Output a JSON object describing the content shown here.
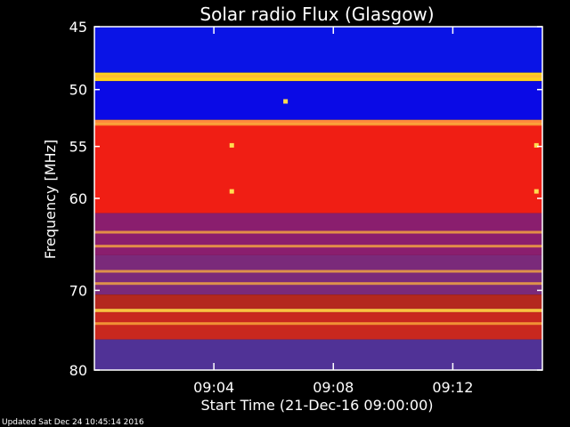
{
  "chart_data": {
    "type": "heatmap",
    "title": "Solar radio Flux (Glasgow)",
    "xlabel": "Start Time (21-Dec-16 09:00:00)",
    "ylabel": "Frequency [MHz]",
    "x_ticks": [
      "09:04",
      "09:08",
      "09:12"
    ],
    "x_tick_minutes": [
      4,
      8,
      12
    ],
    "xlim_minutes": [
      0,
      15
    ],
    "y_ticks": [
      45,
      50,
      55,
      60,
      70,
      80
    ],
    "ylim_mhz": [
      45,
      80
    ],
    "y_scale": "log",
    "colormap": "blue-red-yellow",
    "bands": [
      {
        "from": 45.0,
        "to": 48.6,
        "color": "#0a14e6"
      },
      {
        "from": 48.6,
        "to": 49.3,
        "color": "#ffd21e"
      },
      {
        "from": 49.3,
        "to": 52.6,
        "color": "#0a0ae6"
      },
      {
        "from": 52.6,
        "to": 53.0,
        "color": "#ff8a3c"
      },
      {
        "from": 53.0,
        "to": 61.5,
        "color": "#f01e14"
      },
      {
        "from": 61.5,
        "to": 66.0,
        "color": "#8a1e6e"
      },
      {
        "from": 66.0,
        "to": 70.5,
        "color": "#7a2a7a"
      },
      {
        "from": 70.5,
        "to": 72.2,
        "color": "#b4281e"
      },
      {
        "from": 72.2,
        "to": 72.6,
        "color": "#ffe650"
      },
      {
        "from": 72.6,
        "to": 76.0,
        "color": "#c8281e"
      },
      {
        "from": 76.0,
        "to": 80.0,
        "color": "#503296"
      }
    ],
    "bright_lines_mhz": [
      48.9,
      53.0,
      63.5,
      65.0,
      67.8,
      69.2,
      72.4,
      74.0
    ],
    "bright_spots": [
      {
        "minute": 4.6,
        "mhz": 54.9
      },
      {
        "minute": 4.6,
        "mhz": 59.3
      },
      {
        "minute": 6.4,
        "mhz": 51.0
      },
      {
        "minute": 14.8,
        "mhz": 54.9
      },
      {
        "minute": 14.8,
        "mhz": 59.3
      }
    ]
  },
  "footer": {
    "updated": "Updated Sat Dec 24 10:45:14 2016"
  },
  "colors": {
    "background": "#000000",
    "frame": "#ffffff",
    "low": "#0a14e6",
    "mid": "#f01e14",
    "high": "#ffe650"
  }
}
